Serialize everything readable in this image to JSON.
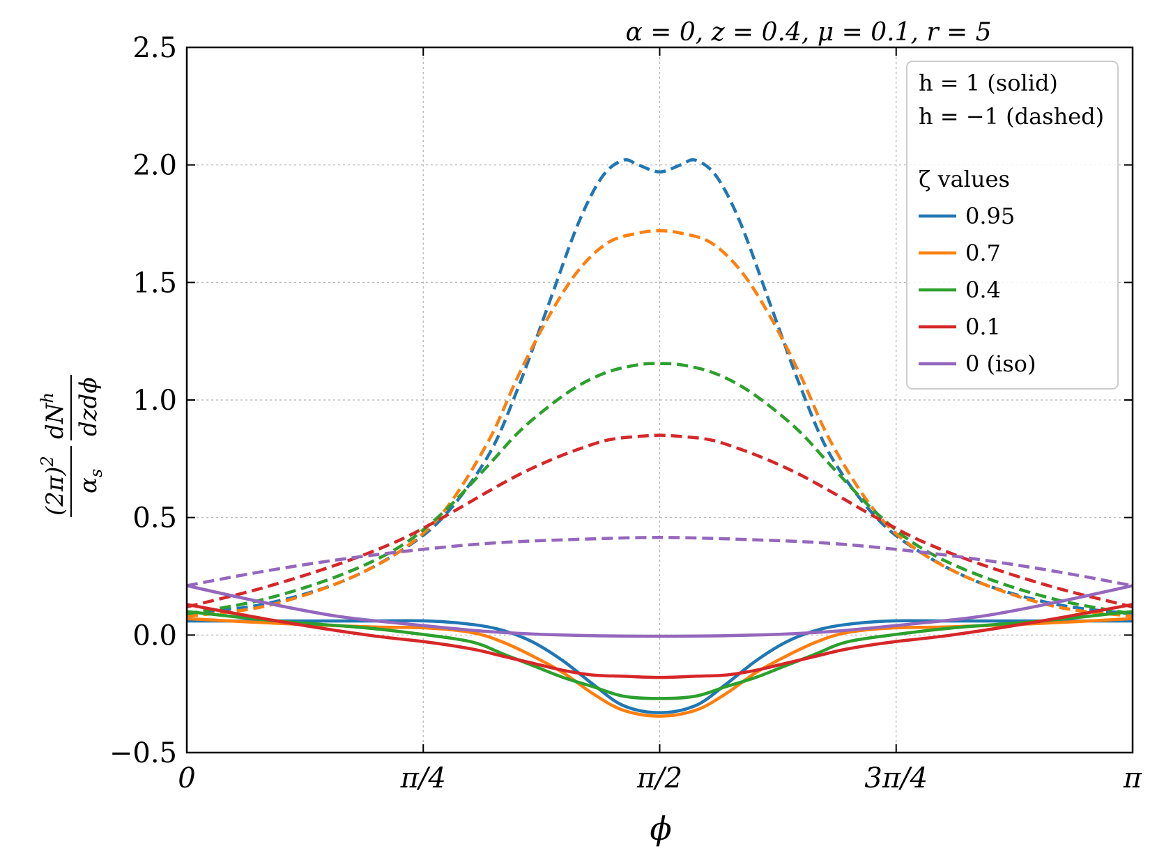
{
  "chart_data": {
    "type": "line",
    "title": "α = 0, z = 0.4, μ = 0.1, r = 5",
    "xlabel": "ϕ",
    "ylabel_latex": "(2π)^2/α_s dN^h/(dz dϕ)",
    "ylabel_parts": {
      "numer_left": "(2π)",
      "numer_left_sup": "2",
      "denom_left": "α",
      "denom_left_sub": "s",
      "numer_right": "dN",
      "numer_right_sup": "h",
      "denom_right": "dzdϕ"
    },
    "xlim": [
      0,
      3.14159265
    ],
    "ylim": [
      -0.5,
      2.5
    ],
    "x_ticks": [
      {
        "value": 0,
        "label": "0"
      },
      {
        "value": 0.785398,
        "label": "π/4"
      },
      {
        "value": 1.570796,
        "label": "π/2"
      },
      {
        "value": 2.356194,
        "label": "3π/4"
      },
      {
        "value": 3.141593,
        "label": "π"
      }
    ],
    "y_ticks": [
      {
        "value": -0.5,
        "label": "−0.5"
      },
      {
        "value": 0.0,
        "label": "0.0"
      },
      {
        "value": 0.5,
        "label": "0.5"
      },
      {
        "value": 1.0,
        "label": "1.0"
      },
      {
        "value": 1.5,
        "label": "1.5"
      },
      {
        "value": 2.0,
        "label": "2.0"
      },
      {
        "value": 2.5,
        "label": "2.5"
      }
    ],
    "grid": true,
    "legend": {
      "position": "top-right",
      "line1": "h = 1 (solid)",
      "line2": "h = −1 (dashed)",
      "header": "ζ values",
      "entries": [
        {
          "label": "0.95",
          "color": "#1f77b4"
        },
        {
          "label": "0.7",
          "color": "#ff7f0e"
        },
        {
          "label": "0.4",
          "color": "#2ca02c"
        },
        {
          "label": "0.1",
          "color": "#d62728"
        },
        {
          "label": "0 (iso)",
          "color": "#9467bd"
        }
      ]
    },
    "series": [
      {
        "name": "0.95",
        "h": -1,
        "style": "dashed",
        "color": "#1f77b4",
        "points": [
          [
            0,
            0.09
          ],
          [
            0.25,
            0.13
          ],
          [
            0.5,
            0.22
          ],
          [
            0.7,
            0.35
          ],
          [
            0.85,
            0.5
          ],
          [
            1.0,
            0.76
          ],
          [
            1.1,
            1.05
          ],
          [
            1.2,
            1.4
          ],
          [
            1.3,
            1.75
          ],
          [
            1.38,
            1.95
          ],
          [
            1.45,
            2.02
          ],
          [
            1.5,
            2.0
          ],
          [
            1.5708,
            1.97
          ],
          [
            1.64,
            2.0
          ],
          [
            1.69,
            2.02
          ],
          [
            1.76,
            1.95
          ],
          [
            1.84,
            1.75
          ],
          [
            1.94,
            1.4
          ],
          [
            2.04,
            1.05
          ],
          [
            2.14,
            0.76
          ],
          [
            2.29,
            0.5
          ],
          [
            2.44,
            0.35
          ],
          [
            2.64,
            0.22
          ],
          [
            2.89,
            0.13
          ],
          [
            3.1416,
            0.09
          ]
        ]
      },
      {
        "name": "0.7",
        "h": -1,
        "style": "dashed",
        "color": "#ff7f0e",
        "points": [
          [
            0,
            0.08
          ],
          [
            0.25,
            0.12
          ],
          [
            0.5,
            0.22
          ],
          [
            0.7,
            0.35
          ],
          [
            0.85,
            0.52
          ],
          [
            1.0,
            0.82
          ],
          [
            1.1,
            1.1
          ],
          [
            1.2,
            1.35
          ],
          [
            1.3,
            1.55
          ],
          [
            1.4,
            1.67
          ],
          [
            1.5,
            1.71
          ],
          [
            1.5708,
            1.72
          ],
          [
            1.64,
            1.71
          ],
          [
            1.74,
            1.67
          ],
          [
            1.84,
            1.55
          ],
          [
            1.94,
            1.35
          ],
          [
            2.04,
            1.1
          ],
          [
            2.14,
            0.82
          ],
          [
            2.29,
            0.52
          ],
          [
            2.44,
            0.35
          ],
          [
            2.64,
            0.22
          ],
          [
            2.89,
            0.12
          ],
          [
            3.1416,
            0.08
          ]
        ]
      },
      {
        "name": "0.4",
        "h": -1,
        "style": "dashed",
        "color": "#2ca02c",
        "points": [
          [
            0,
            0.09
          ],
          [
            0.25,
            0.15
          ],
          [
            0.5,
            0.25
          ],
          [
            0.7,
            0.37
          ],
          [
            0.85,
            0.52
          ],
          [
            1.0,
            0.72
          ],
          [
            1.1,
            0.86
          ],
          [
            1.2,
            0.97
          ],
          [
            1.3,
            1.06
          ],
          [
            1.4,
            1.12
          ],
          [
            1.5,
            1.15
          ],
          [
            1.5708,
            1.155
          ],
          [
            1.64,
            1.15
          ],
          [
            1.74,
            1.12
          ],
          [
            1.84,
            1.06
          ],
          [
            1.94,
            0.97
          ],
          [
            2.04,
            0.86
          ],
          [
            2.14,
            0.72
          ],
          [
            2.29,
            0.52
          ],
          [
            2.44,
            0.37
          ],
          [
            2.64,
            0.25
          ],
          [
            2.89,
            0.15
          ],
          [
            3.1416,
            0.09
          ]
        ]
      },
      {
        "name": "0.1",
        "h": -1,
        "style": "dashed",
        "color": "#d62728",
        "points": [
          [
            0,
            0.12
          ],
          [
            0.25,
            0.2
          ],
          [
            0.5,
            0.3
          ],
          [
            0.7,
            0.4
          ],
          [
            0.85,
            0.5
          ],
          [
            1.0,
            0.61
          ],
          [
            1.1,
            0.68
          ],
          [
            1.2,
            0.74
          ],
          [
            1.3,
            0.79
          ],
          [
            1.4,
            0.83
          ],
          [
            1.5,
            0.845
          ],
          [
            1.5708,
            0.85
          ],
          [
            1.64,
            0.845
          ],
          [
            1.74,
            0.83
          ],
          [
            1.84,
            0.79
          ],
          [
            1.94,
            0.74
          ],
          [
            2.04,
            0.68
          ],
          [
            2.14,
            0.61
          ],
          [
            2.29,
            0.5
          ],
          [
            2.44,
            0.4
          ],
          [
            2.64,
            0.3
          ],
          [
            2.89,
            0.2
          ],
          [
            3.1416,
            0.12
          ]
        ]
      },
      {
        "name": "0 (iso)",
        "h": -1,
        "style": "dashed",
        "color": "#9467bd",
        "points": [
          [
            0,
            0.21
          ],
          [
            0.25,
            0.27
          ],
          [
            0.5,
            0.32
          ],
          [
            0.75,
            0.36
          ],
          [
            1.0,
            0.39
          ],
          [
            1.25,
            0.405
          ],
          [
            1.5708,
            0.415
          ],
          [
            1.89,
            0.405
          ],
          [
            2.14,
            0.39
          ],
          [
            2.39,
            0.36
          ],
          [
            2.64,
            0.32
          ],
          [
            2.89,
            0.27
          ],
          [
            3.1416,
            0.21
          ]
        ]
      },
      {
        "name": "0.95",
        "h": 1,
        "style": "solid",
        "color": "#1f77b4",
        "points": [
          [
            0,
            0.06
          ],
          [
            0.3,
            0.06
          ],
          [
            0.6,
            0.06
          ],
          [
            0.8,
            0.06
          ],
          [
            0.95,
            0.045
          ],
          [
            1.05,
            0.02
          ],
          [
            1.15,
            -0.03
          ],
          [
            1.25,
            -0.11
          ],
          [
            1.35,
            -0.21
          ],
          [
            1.45,
            -0.3
          ],
          [
            1.5708,
            -0.33
          ],
          [
            1.69,
            -0.3
          ],
          [
            1.79,
            -0.21
          ],
          [
            1.89,
            -0.11
          ],
          [
            1.99,
            -0.03
          ],
          [
            2.09,
            0.02
          ],
          [
            2.19,
            0.045
          ],
          [
            2.34,
            0.06
          ],
          [
            2.54,
            0.06
          ],
          [
            2.84,
            0.06
          ],
          [
            3.1416,
            0.06
          ]
        ]
      },
      {
        "name": "0.7",
        "h": 1,
        "style": "solid",
        "color": "#ff7f0e",
        "points": [
          [
            0,
            0.07
          ],
          [
            0.3,
            0.05
          ],
          [
            0.6,
            0.035
          ],
          [
            0.8,
            0.03
          ],
          [
            0.95,
            0.01
          ],
          [
            1.05,
            -0.03
          ],
          [
            1.15,
            -0.09
          ],
          [
            1.25,
            -0.16
          ],
          [
            1.35,
            -0.25
          ],
          [
            1.45,
            -0.32
          ],
          [
            1.5708,
            -0.345
          ],
          [
            1.69,
            -0.32
          ],
          [
            1.79,
            -0.25
          ],
          [
            1.89,
            -0.16
          ],
          [
            1.99,
            -0.09
          ],
          [
            2.09,
            -0.03
          ],
          [
            2.19,
            0.01
          ],
          [
            2.34,
            0.03
          ],
          [
            2.54,
            0.035
          ],
          [
            2.84,
            0.05
          ],
          [
            3.1416,
            0.07
          ]
        ]
      },
      {
        "name": "0.4",
        "h": 1,
        "style": "solid",
        "color": "#2ca02c",
        "points": [
          [
            0,
            0.1
          ],
          [
            0.3,
            0.06
          ],
          [
            0.6,
            0.03
          ],
          [
            0.8,
            0.0
          ],
          [
            0.95,
            -0.03
          ],
          [
            1.05,
            -0.08
          ],
          [
            1.15,
            -0.13
          ],
          [
            1.25,
            -0.18
          ],
          [
            1.35,
            -0.22
          ],
          [
            1.45,
            -0.26
          ],
          [
            1.5708,
            -0.27
          ],
          [
            1.69,
            -0.26
          ],
          [
            1.79,
            -0.22
          ],
          [
            1.89,
            -0.18
          ],
          [
            1.99,
            -0.13
          ],
          [
            2.09,
            -0.08
          ],
          [
            2.19,
            -0.03
          ],
          [
            2.34,
            0.0
          ],
          [
            2.54,
            0.03
          ],
          [
            2.84,
            0.06
          ],
          [
            3.1416,
            0.1
          ]
        ]
      },
      {
        "name": "0.1",
        "h": 1,
        "style": "solid",
        "color": "#d62728",
        "points": [
          [
            0,
            0.13
          ],
          [
            0.3,
            0.06
          ],
          [
            0.6,
            0.0
          ],
          [
            0.8,
            -0.03
          ],
          [
            0.95,
            -0.06
          ],
          [
            1.05,
            -0.09
          ],
          [
            1.15,
            -0.12
          ],
          [
            1.25,
            -0.15
          ],
          [
            1.35,
            -0.17
          ],
          [
            1.45,
            -0.175
          ],
          [
            1.5708,
            -0.18
          ],
          [
            1.69,
            -0.175
          ],
          [
            1.79,
            -0.17
          ],
          [
            1.89,
            -0.15
          ],
          [
            1.99,
            -0.12
          ],
          [
            2.09,
            -0.09
          ],
          [
            2.19,
            -0.06
          ],
          [
            2.34,
            -0.03
          ],
          [
            2.54,
            0.0
          ],
          [
            2.84,
            0.06
          ],
          [
            3.1416,
            0.13
          ]
        ]
      },
      {
        "name": "0 (iso)",
        "h": 1,
        "style": "solid",
        "color": "#9467bd",
        "points": [
          [
            0,
            0.21
          ],
          [
            0.25,
            0.14
          ],
          [
            0.5,
            0.08
          ],
          [
            0.75,
            0.045
          ],
          [
            1.0,
            0.015
          ],
          [
            1.25,
            0.0
          ],
          [
            1.5708,
            -0.005
          ],
          [
            1.89,
            0.0
          ],
          [
            2.14,
            0.015
          ],
          [
            2.39,
            0.045
          ],
          [
            2.64,
            0.08
          ],
          [
            2.89,
            0.14
          ],
          [
            3.1416,
            0.21
          ]
        ]
      }
    ]
  }
}
